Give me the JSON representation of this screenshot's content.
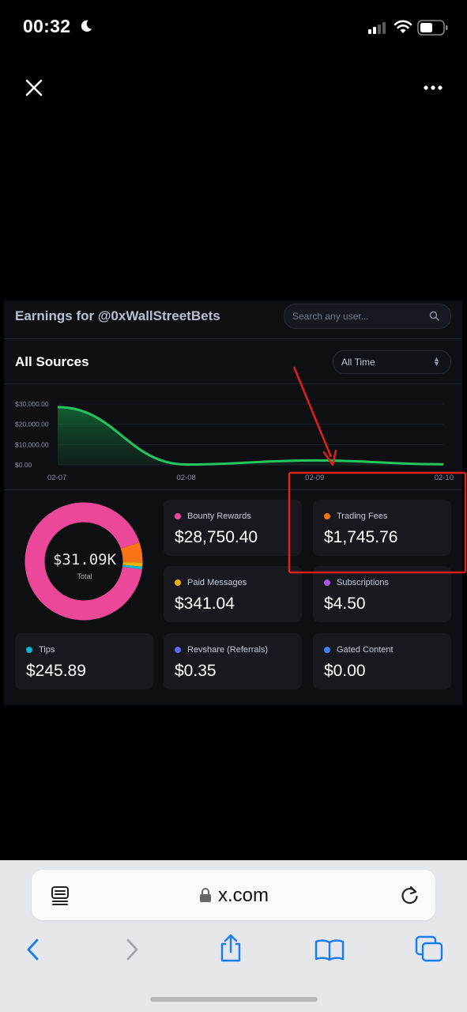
{
  "status_bar": {
    "time": "00:32"
  },
  "embedded": {
    "earnings_title": "Earnings  for @0xWallStreetBets",
    "search_placeholder": "Search any user...",
    "section_title": "All Sources",
    "time_filter": "All Time",
    "total_value": "$31.09K",
    "total_label": "Total",
    "cards": [
      {
        "label": "Bounty Rewards",
        "value": "$28,750.40",
        "color": "#ec4899"
      },
      {
        "label": "Trading Fees",
        "value": "$1,745.76",
        "color": "#f97316"
      },
      {
        "label": "Paid Messages",
        "value": "$341.04",
        "color": "#eab308"
      },
      {
        "label": "Subscriptions",
        "value": "$4.50",
        "color": "#a855f7"
      },
      {
        "label": "Tips",
        "value": "$245.89",
        "color": "#06b6d4"
      },
      {
        "label": "Revshare (Referrals)",
        "value": "$0.35",
        "color": "#6366f1"
      },
      {
        "label": "Gated Content",
        "value": "$0.00",
        "color": "#3b82f6"
      }
    ]
  },
  "chart_data": [
    {
      "type": "area",
      "x": [
        "02-07",
        "02-08",
        "02-09",
        "02-10"
      ],
      "series": [
        {
          "values": [
            28500,
            200,
            2200,
            300
          ],
          "color": "#22c55e"
        }
      ],
      "ytick_labels": [
        "$30,000.00",
        "$20,000.00",
        "$10,000.00",
        "$0.00"
      ],
      "ylim": [
        0,
        30000
      ],
      "grid": true
    },
    {
      "type": "pie",
      "donut": true,
      "labels": [
        "Bounty Rewards",
        "Trading Fees",
        "Paid Messages",
        "Tips",
        "Subscriptions",
        "Revshare (Referrals)",
        "Gated Content"
      ],
      "values": [
        28750.4,
        1745.76,
        341.04,
        245.89,
        4.5,
        0.35,
        0.0
      ],
      "colors": [
        "#ec4899",
        "#f97316",
        "#eab308",
        "#06b6d4",
        "#a855f7",
        "#6366f1",
        "#3b82f6"
      ]
    }
  ],
  "browser": {
    "url": "x.com"
  },
  "colors": {
    "accent_blue": "#1a7cf2",
    "highlight_red": "#e0211b"
  }
}
